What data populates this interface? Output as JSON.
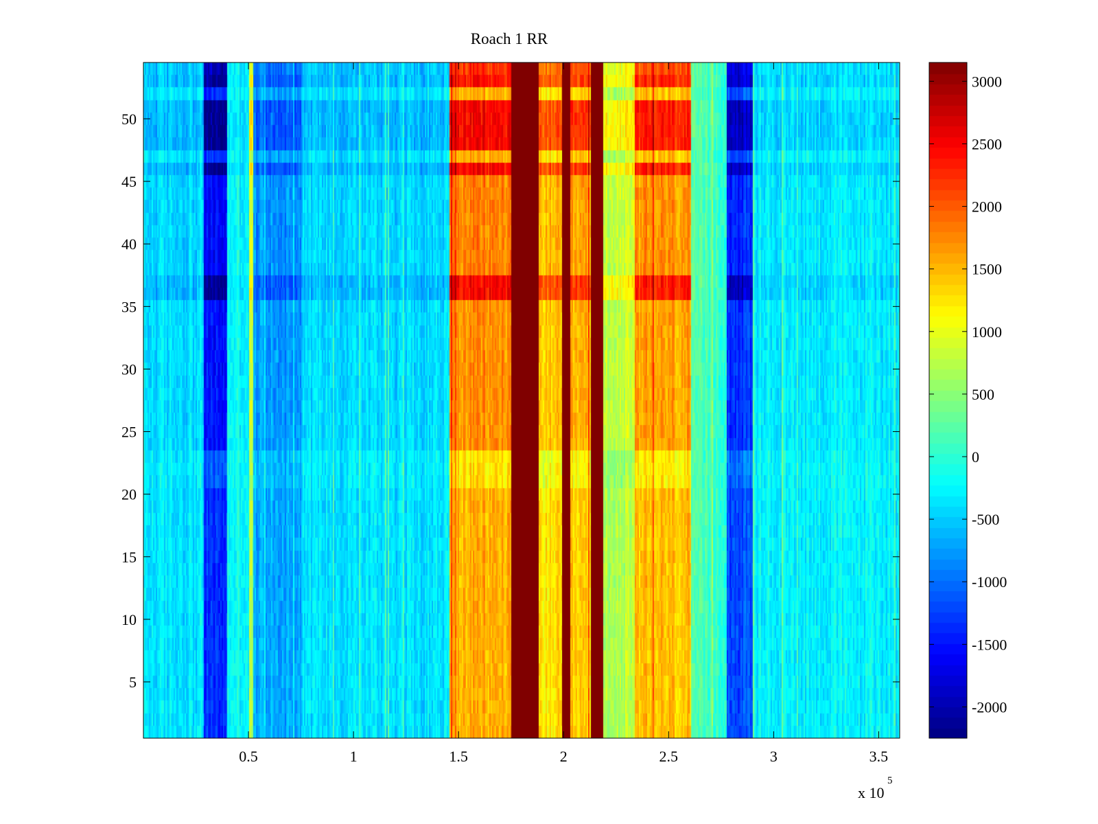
{
  "chart_data": {
    "type": "heatmap",
    "title": "Roach 1 RR",
    "xlabel": "",
    "ylabel": "",
    "x_exponent_label": "x 10",
    "x_exponent_power": "5",
    "xlim": [
      0,
      360000
    ],
    "ylim": [
      0.5,
      54.5
    ],
    "x_ticks": [
      {
        "value": 50000,
        "label": "0.5"
      },
      {
        "value": 100000,
        "label": "1"
      },
      {
        "value": 150000,
        "label": "1.5"
      },
      {
        "value": 200000,
        "label": "2"
      },
      {
        "value": 250000,
        "label": "2.5"
      },
      {
        "value": 300000,
        "label": "3"
      },
      {
        "value": 350000,
        "label": "3.5"
      }
    ],
    "y_ticks": [
      {
        "value": 5,
        "label": "5"
      },
      {
        "value": 10,
        "label": "10"
      },
      {
        "value": 15,
        "label": "15"
      },
      {
        "value": 20,
        "label": "20"
      },
      {
        "value": 25,
        "label": "25"
      },
      {
        "value": 30,
        "label": "30"
      },
      {
        "value": 35,
        "label": "35"
      },
      {
        "value": 40,
        "label": "40"
      },
      {
        "value": 45,
        "label": "45"
      },
      {
        "value": 50,
        "label": "50"
      }
    ],
    "colorbar": {
      "colormap": "jet",
      "clim": [
        -2250,
        3150
      ],
      "ticks": [
        {
          "value": 3000,
          "label": "3000"
        },
        {
          "value": 2500,
          "label": "2500"
        },
        {
          "value": 2000,
          "label": "2000"
        },
        {
          "value": 1500,
          "label": "1500"
        },
        {
          "value": 1000,
          "label": "1000"
        },
        {
          "value": 500,
          "label": "500"
        },
        {
          "value": 0,
          "label": "0"
        },
        {
          "value": -500,
          "label": "-500"
        },
        {
          "value": -1000,
          "label": "-1000"
        },
        {
          "value": -1500,
          "label": "-1500"
        },
        {
          "value": -2000,
          "label": "-2000"
        }
      ]
    },
    "rows": 54,
    "column_profile": [
      {
        "x0": 0,
        "x1": 29000,
        "value": -400
      },
      {
        "x0": 29000,
        "x1": 40000,
        "value": -1500
      },
      {
        "x0": 40000,
        "x1": 50000,
        "value": -200
      },
      {
        "x0": 50000,
        "x1": 52000,
        "value": 800
      },
      {
        "x0": 52000,
        "x1": 75000,
        "value": -750
      },
      {
        "x0": 75000,
        "x1": 146000,
        "value": -400
      },
      {
        "x0": 146000,
        "x1": 175000,
        "value": 1700
      },
      {
        "x0": 175000,
        "x1": 188000,
        "value": 3150
      },
      {
        "x0": 188000,
        "x1": 199000,
        "value": 1400
      },
      {
        "x0": 199000,
        "x1": 203000,
        "value": 3150
      },
      {
        "x0": 203000,
        "x1": 213000,
        "value": 1500
      },
      {
        "x0": 213000,
        "x1": 219000,
        "value": 3150
      },
      {
        "x0": 219000,
        "x1": 234000,
        "value": 800
      },
      {
        "x0": 234000,
        "x1": 261000,
        "value": 1600
      },
      {
        "x0": 261000,
        "x1": 278000,
        "value": 100
      },
      {
        "x0": 278000,
        "x1": 290000,
        "value": -1300
      },
      {
        "x0": 290000,
        "x1": 360000,
        "value": -300
      }
    ],
    "row_profile": [
      {
        "y0": 0.5,
        "y1": 20.5,
        "factor": 0.9
      },
      {
        "y0": 20.5,
        "y1": 23.5,
        "factor": 0.75
      },
      {
        "y0": 23.5,
        "y1": 35.5,
        "factor": 1.0
      },
      {
        "y0": 35.5,
        "y1": 37.5,
        "factor": 1.45
      },
      {
        "y0": 37.5,
        "y1": 45.5,
        "factor": 1.05
      },
      {
        "y0": 45.5,
        "y1": 46.5,
        "factor": 1.45
      },
      {
        "y0": 46.5,
        "y1": 47.5,
        "factor": 0.9
      },
      {
        "y0": 47.5,
        "y1": 51.5,
        "factor": 1.45
      },
      {
        "y0": 51.5,
        "y1": 52.5,
        "factor": 0.9
      },
      {
        "y0": 52.5,
        "y1": 53.5,
        "factor": 1.4
      },
      {
        "y0": 53.5,
        "y1": 54.5,
        "factor": 1.3
      }
    ]
  }
}
